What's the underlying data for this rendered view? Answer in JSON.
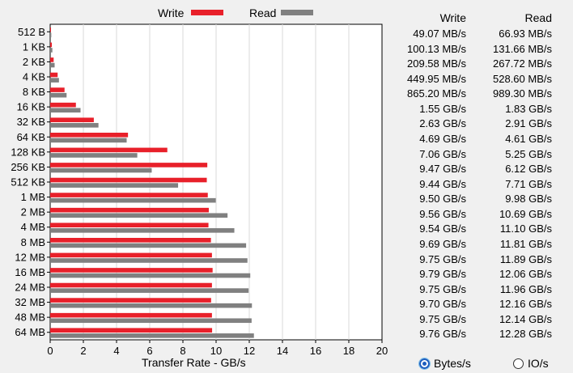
{
  "legend": {
    "write_label": "Write",
    "read_label": "Read",
    "write_color": "#e8202a",
    "read_color": "#808080"
  },
  "columns": {
    "write_header": "Write",
    "read_header": "Read"
  },
  "results": [
    {
      "size": "512 B",
      "write": "49.07 MB/s",
      "read": "66.93 MB/s"
    },
    {
      "size": "1 KB",
      "write": "100.13 MB/s",
      "read": "131.66 MB/s"
    },
    {
      "size": "2 KB",
      "write": "209.58 MB/s",
      "read": "267.72 MB/s"
    },
    {
      "size": "4 KB",
      "write": "449.95 MB/s",
      "read": "528.60 MB/s"
    },
    {
      "size": "8 KB",
      "write": "865.20 MB/s",
      "read": "989.30 MB/s"
    },
    {
      "size": "16 KB",
      "write": "1.55 GB/s",
      "read": "1.83 GB/s"
    },
    {
      "size": "32 KB",
      "write": "2.63 GB/s",
      "read": "2.91 GB/s"
    },
    {
      "size": "64 KB",
      "write": "4.69 GB/s",
      "read": "4.61 GB/s"
    },
    {
      "size": "128 KB",
      "write": "7.06 GB/s",
      "read": "5.25 GB/s"
    },
    {
      "size": "256 KB",
      "write": "9.47 GB/s",
      "read": "6.12 GB/s"
    },
    {
      "size": "512 KB",
      "write": "9.44 GB/s",
      "read": "7.71 GB/s"
    },
    {
      "size": "1 MB",
      "write": "9.50 GB/s",
      "read": "9.98 GB/s"
    },
    {
      "size": "2 MB",
      "write": "9.56 GB/s",
      "read": "10.69 GB/s"
    },
    {
      "size": "4 MB",
      "write": "9.54 GB/s",
      "read": "11.10 GB/s"
    },
    {
      "size": "8 MB",
      "write": "9.69 GB/s",
      "read": "11.81 GB/s"
    },
    {
      "size": "12 MB",
      "write": "9.75 GB/s",
      "read": "11.89 GB/s"
    },
    {
      "size": "16 MB",
      "write": "9.79 GB/s",
      "read": "12.06 GB/s"
    },
    {
      "size": "24 MB",
      "write": "9.75 GB/s",
      "read": "11.96 GB/s"
    },
    {
      "size": "32 MB",
      "write": "9.70 GB/s",
      "read": "12.16 GB/s"
    },
    {
      "size": "48 MB",
      "write": "9.75 GB/s",
      "read": "12.14 GB/s"
    },
    {
      "size": "64 MB",
      "write": "9.76 GB/s",
      "read": "12.28 GB/s"
    }
  ],
  "chart_data": {
    "type": "bar",
    "orientation": "horizontal",
    "categories": [
      "512 B",
      "1 KB",
      "2 KB",
      "4 KB",
      "8 KB",
      "16 KB",
      "32 KB",
      "64 KB",
      "128 KB",
      "256 KB",
      "512 KB",
      "1 MB",
      "2 MB",
      "4 MB",
      "8 MB",
      "12 MB",
      "16 MB",
      "24 MB",
      "32 MB",
      "48 MB",
      "64 MB"
    ],
    "series": [
      {
        "name": "Write",
        "color": "#e8202a",
        "values": [
          0.04907,
          0.10013,
          0.20958,
          0.44995,
          0.8652,
          1.55,
          2.63,
          4.69,
          7.06,
          9.47,
          9.44,
          9.5,
          9.56,
          9.54,
          9.69,
          9.75,
          9.79,
          9.75,
          9.7,
          9.75,
          9.76
        ]
      },
      {
        "name": "Read",
        "color": "#808080",
        "values": [
          0.06693,
          0.13166,
          0.26772,
          0.5286,
          0.9893,
          1.83,
          2.91,
          4.61,
          5.25,
          6.12,
          7.71,
          9.98,
          10.69,
          11.1,
          11.81,
          11.89,
          12.06,
          11.96,
          12.16,
          12.14,
          12.28
        ]
      }
    ],
    "xlabel": "Transfer Rate - GB/s",
    "xlim": [
      0,
      20
    ],
    "xticks": [
      "0",
      "2",
      "4",
      "6",
      "8",
      "10",
      "12",
      "14",
      "16",
      "18",
      "20"
    ],
    "grid": true,
    "legend_position": "top"
  },
  "units": {
    "bytes_label": "Bytes/s",
    "io_label": "IO/s",
    "selected": "bytes"
  }
}
